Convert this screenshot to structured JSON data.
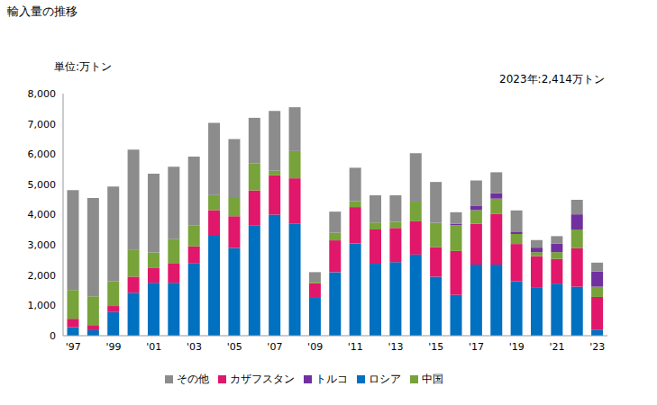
{
  "chart_data": {
    "type": "bar",
    "title": "輸入量の推移",
    "ylabel": "単位:万トン",
    "annotation": "2023年:2,414万トン",
    "categories": [
      "'97",
      null,
      "'99",
      null,
      "'01",
      null,
      "'03",
      null,
      "'05",
      null,
      "'07",
      null,
      "'09",
      null,
      "'11",
      null,
      "'13",
      null,
      "'15",
      null,
      "'17",
      null,
      "'19",
      null,
      "'21",
      null,
      "'23"
    ],
    "series": [
      {
        "name": "ロシア",
        "color": "#0070c0",
        "values": [
          280,
          180,
          780,
          1420,
          1750,
          1750,
          2400,
          3300,
          2900,
          3650,
          4000,
          3700,
          1250,
          2100,
          3050,
          2380,
          2430,
          2680,
          1950,
          1350,
          2350,
          2350,
          1800,
          1580,
          1720,
          1620,
          200
        ]
      },
      {
        "name": "カザフスタン",
        "color": "#e0176a",
        "values": [
          280,
          170,
          200,
          530,
          500,
          650,
          550,
          850,
          1050,
          1150,
          1300,
          1500,
          480,
          1050,
          1200,
          1130,
          1130,
          1100,
          980,
          1450,
          1350,
          1680,
          1230,
          1050,
          820,
          1270,
          1080
        ]
      },
      {
        "name": "中国",
        "color": "#77a33a",
        "values": [
          950,
          950,
          820,
          900,
          500,
          800,
          700,
          500,
          600,
          900,
          150,
          900,
          50,
          250,
          200,
          230,
          200,
          650,
          800,
          850,
          450,
          500,
          330,
          130,
          220,
          620,
          340
        ]
      },
      {
        "name": "トルコ",
        "color": "#7030a0",
        "values": [
          0,
          0,
          0,
          0,
          0,
          0,
          0,
          0,
          0,
          0,
          0,
          0,
          0,
          0,
          0,
          0,
          0,
          0,
          0,
          50,
          150,
          180,
          80,
          150,
          280,
          500,
          500
        ]
      },
      {
        "name": "その他",
        "color": "#8c8c8c",
        "values": [
          3300,
          3250,
          3130,
          3300,
          2600,
          2380,
          2270,
          2380,
          1950,
          1500,
          1980,
          1450,
          320,
          700,
          1100,
          900,
          880,
          1600,
          1350,
          380,
          830,
          690,
          700,
          250,
          250,
          480,
          294
        ]
      }
    ],
    "ylim": [
      0,
      8000
    ],
    "yticks": [
      0,
      {
        "value": 1000,
        "label": "1,000"
      },
      {
        "value": 2000,
        "label": "2,000"
      },
      {
        "value": 3000,
        "label": "3,000"
      },
      {
        "value": 4000,
        "label": "4,000"
      },
      {
        "value": 5000,
        "label": "5,000"
      },
      {
        "value": 6000,
        "label": "6,000"
      },
      {
        "value": 7000,
        "label": "7,000"
      },
      {
        "value": 8000,
        "label": "8,000"
      }
    ],
    "stacked": true,
    "grid": false,
    "legend": "bottom"
  }
}
